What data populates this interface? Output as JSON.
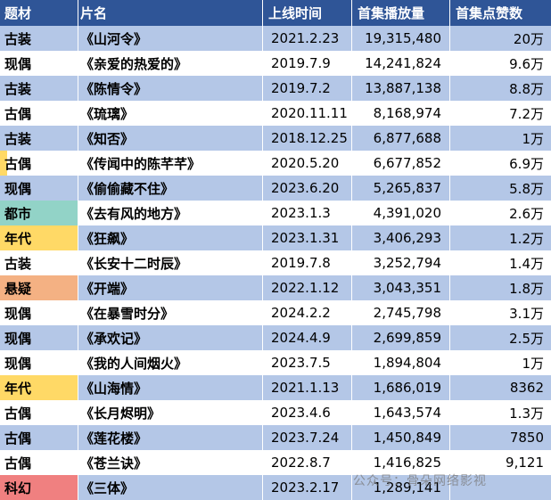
{
  "chart_data": {
    "type": "table",
    "columns": [
      "题材",
      "片名",
      "上线时间",
      "首集播放量",
      "首集点赞数"
    ],
    "rows": [
      {
        "genre": "古装",
        "title": "《山河令》",
        "date": "2021.2.23",
        "plays": "19,315,480",
        "likes": "20万",
        "genre_color": null,
        "genre_stripe": null
      },
      {
        "genre": "现偶",
        "title": "《亲爱的热爱的》",
        "date": "2019.7.9",
        "plays": "14,241,824",
        "likes": "9.6万",
        "genre_color": null,
        "genre_stripe": null
      },
      {
        "genre": "古装",
        "title": "《陈情令》",
        "date": "2019.7.2",
        "plays": "13,887,138",
        "likes": "8.8万",
        "genre_color": null,
        "genre_stripe": null
      },
      {
        "genre": "古偶",
        "title": "《琉璃》",
        "date": "2020.11.11",
        "plays": "8,168,974",
        "likes": "7.2万",
        "genre_color": null,
        "genre_stripe": null
      },
      {
        "genre": "古装",
        "title": "《知否》",
        "date": "2018.12.25",
        "plays": "6,877,688",
        "likes": "1万",
        "genre_color": null,
        "genre_stripe": null
      },
      {
        "genre": "古偶",
        "title": "《传闻中的陈芊芊》",
        "date": "2020.5.20",
        "plays": "6,677,852",
        "likes": "6.9万",
        "genre_color": null,
        "genre_stripe": "#FFD966"
      },
      {
        "genre": "现偶",
        "title": "《偷偷藏不住》",
        "date": "2023.6.20",
        "plays": "5,265,837",
        "likes": "5.8万",
        "genre_color": null,
        "genre_stripe": null
      },
      {
        "genre": "都市",
        "title": "《去有风的地方》",
        "date": "2023.1.3",
        "plays": "4,391,020",
        "likes": "2.6万",
        "genre_color": "#92D3C7",
        "genre_stripe": null
      },
      {
        "genre": "年代",
        "title": "《狂飙》",
        "date": "2023.1.31",
        "plays": "3,406,293",
        "likes": "1.2万",
        "genre_color": "#FFD966",
        "genre_stripe": null
      },
      {
        "genre": "古装",
        "title": "《长安十二时辰》",
        "date": "2019.7.8",
        "plays": "3,252,794",
        "likes": "1.4万",
        "genre_color": null,
        "genre_stripe": null
      },
      {
        "genre": "悬疑",
        "title": "《开端》",
        "date": "2022.1.12",
        "plays": "3,043,351",
        "likes": "1.8万",
        "genre_color": "#F4B183",
        "genre_stripe": null
      },
      {
        "genre": "现偶",
        "title": "《在暴雪时分》",
        "date": "2024.2.2",
        "plays": "2,745,798",
        "likes": "3.1万",
        "genre_color": null,
        "genre_stripe": null
      },
      {
        "genre": "现偶",
        "title": "《承欢记》",
        "date": "2024.4.9",
        "plays": "2,699,859",
        "likes": "2.5万",
        "genre_color": null,
        "genre_stripe": null
      },
      {
        "genre": "现偶",
        "title": "《我的人间烟火》",
        "date": "2023.7.5",
        "plays": "1,894,804",
        "likes": "1万",
        "genre_color": null,
        "genre_stripe": null
      },
      {
        "genre": "年代",
        "title": "《山海情》",
        "date": "2021.1.13",
        "plays": "1,686,019",
        "likes": "8362",
        "genre_color": "#FFD966",
        "genre_stripe": null
      },
      {
        "genre": "古偶",
        "title": "《长月烬明》",
        "date": "2023.4.6",
        "plays": "1,643,574",
        "likes": "1.3万",
        "genre_color": null,
        "genre_stripe": null
      },
      {
        "genre": "古偶",
        "title": "《莲花楼》",
        "date": "2023.7.24",
        "plays": "1,450,849",
        "likes": "7850",
        "genre_color": null,
        "genre_stripe": null
      },
      {
        "genre": "古偶",
        "title": "《苍兰诀》",
        "date": "2022.8.7",
        "plays": "1,416,825",
        "likes": "9,121",
        "genre_color": null,
        "genre_stripe": null
      },
      {
        "genre": "科幻",
        "title": "《三体》",
        "date": "2023.2.17",
        "plays": "1,289,141",
        "likes": "",
        "genre_color": "#F08080",
        "genre_stripe": null
      }
    ],
    "title": "",
    "legend": "none",
    "grid": "banded-rows"
  },
  "colors": {
    "header_bg": "#2F5597",
    "header_text": "#FFFFFF",
    "row_alt_bg": "#B4C7E7",
    "row_bg": "#FFFFFF",
    "genre_urban": "#92D3C7",
    "genre_era": "#FFD966",
    "genre_suspense": "#F4B183",
    "genre_scifi": "#F08080",
    "genre_highlight_stripe": "#FFD966"
  },
  "watermark": {
    "text": "公众号：骨朵网络影视"
  }
}
